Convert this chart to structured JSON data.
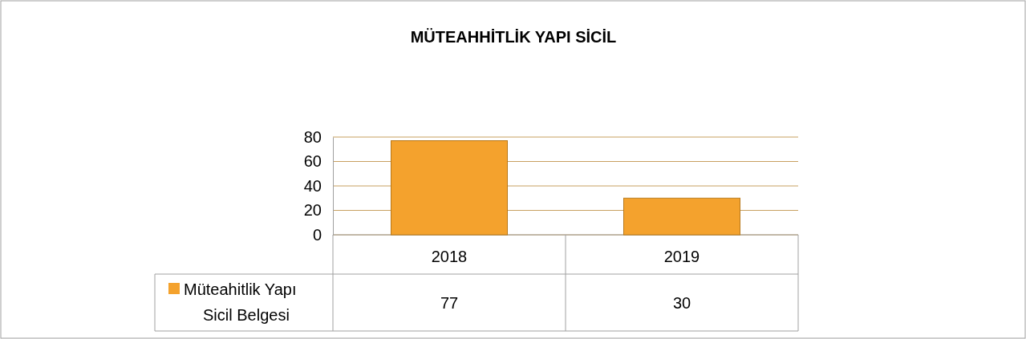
{
  "chart_data": {
    "type": "bar",
    "title": "MÜTEAHHİTLİK YAPI SİCİL",
    "categories": [
      "2018",
      "2019"
    ],
    "series": [
      {
        "name": "Müteahitlik Yapı Sicil Belgesi",
        "color": "#f4a22d",
        "values": [
          77,
          30
        ]
      }
    ],
    "ylim": [
      0,
      80
    ],
    "yticks": [
      0,
      20,
      40,
      60,
      80
    ],
    "grid": "y",
    "legend": "bottom",
    "data_labels": true
  }
}
